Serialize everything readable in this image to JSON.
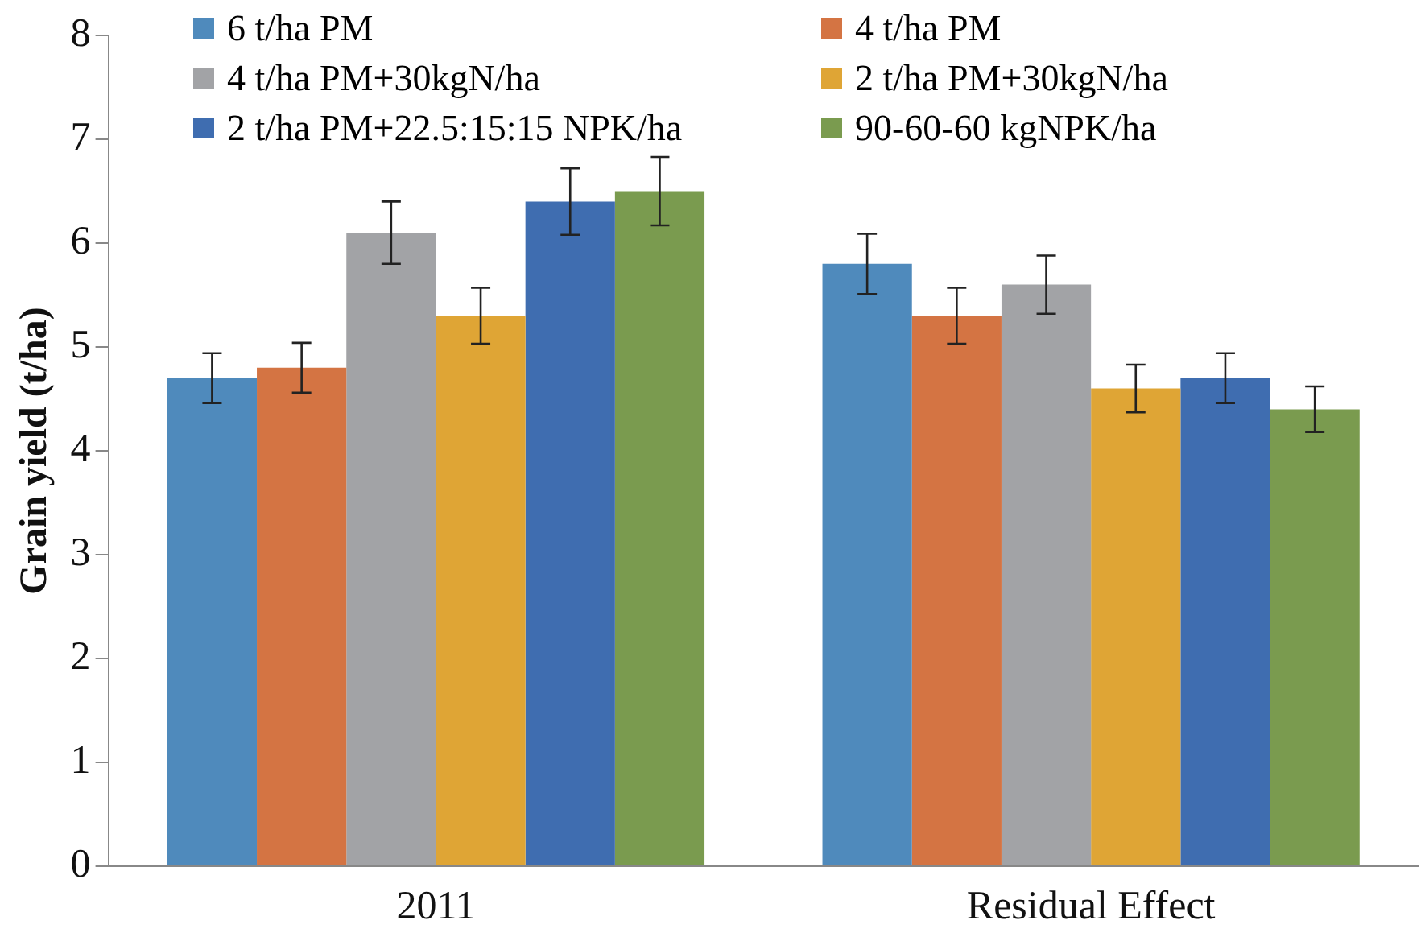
{
  "chart_data": {
    "type": "bar",
    "ylabel": "Grain yield (t/ha)",
    "categories": [
      "2011",
      "Residual Effect"
    ],
    "series": [
      {
        "name": "6 t/ha PM",
        "color": "#4f8abc",
        "values": [
          4.7,
          5.8
        ],
        "errors": [
          0.24,
          0.29
        ]
      },
      {
        "name": "4 t/ha PM",
        "color": "#d47443",
        "values": [
          4.8,
          5.3
        ],
        "errors": [
          0.24,
          0.27
        ]
      },
      {
        "name": "4 t/ha PM+30kgN/ha",
        "color": "#a2a3a6",
        "values": [
          6.1,
          5.6
        ],
        "errors": [
          0.3,
          0.28
        ]
      },
      {
        "name": "2 t/ha PM+30kgN/ha",
        "color": "#dfa535",
        "values": [
          5.3,
          4.6
        ],
        "errors": [
          0.27,
          0.23
        ]
      },
      {
        "name": "2 t/ha PM+22.5:15:15 NPK/ha",
        "color": "#3f6db0",
        "values": [
          6.4,
          4.7
        ],
        "errors": [
          0.32,
          0.24
        ]
      },
      {
        "name": "90-60-60 kgNPK/ha",
        "color": "#7a9b4f",
        "values": [
          6.5,
          4.4
        ],
        "errors": [
          0.33,
          0.22
        ]
      }
    ],
    "ylim": [
      0,
      8
    ],
    "yticks": [
      0,
      1,
      2,
      3,
      4,
      5,
      6,
      7,
      8
    ],
    "grid": false,
    "legend": "top"
  }
}
